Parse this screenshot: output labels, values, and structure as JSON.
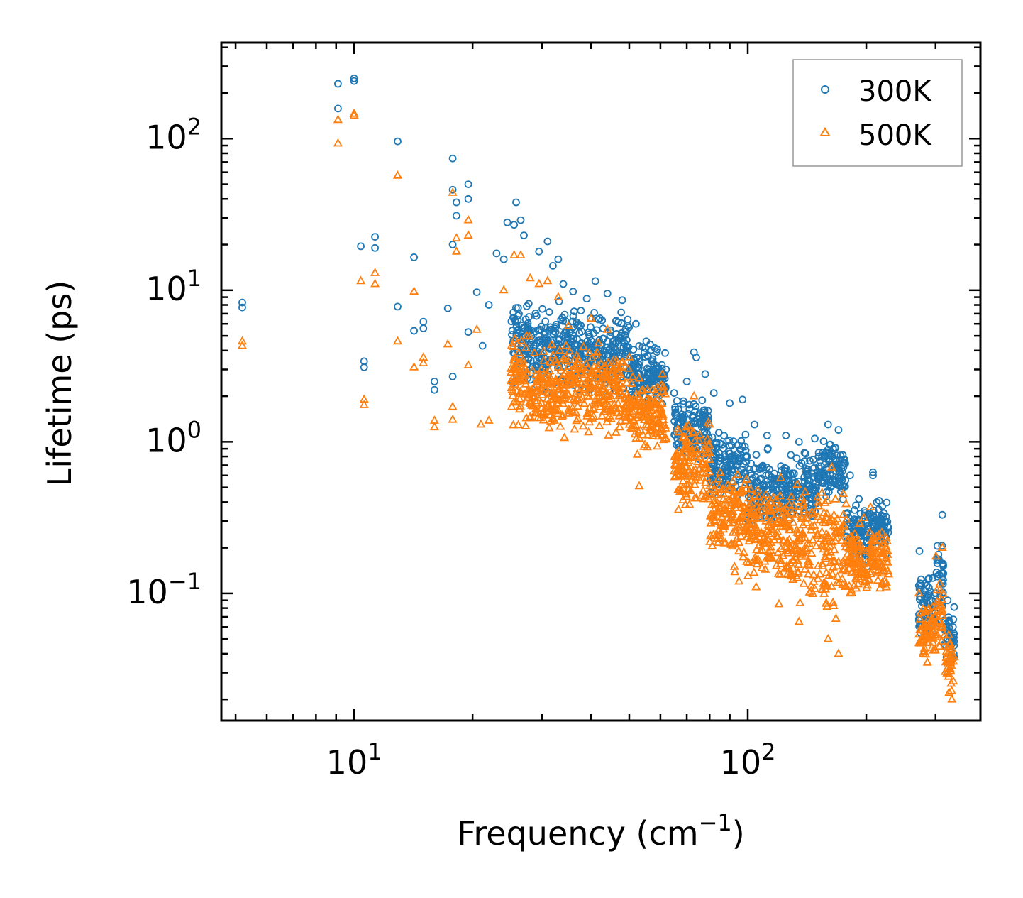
{
  "chart_data": {
    "type": "scatter",
    "title": "",
    "xlabel": "Frequency (cm",
    "xlabel_sup": "−1",
    "xlabel_suffix": ")",
    "ylabel": "Lifetime (ps)",
    "xscale": "log",
    "yscale": "log",
    "xlim": [
      4.6,
      390
    ],
    "ylim": [
      0.0145,
      430
    ],
    "x_ticks": [
      {
        "value": 10,
        "base": "10",
        "exp": "1"
      },
      {
        "value": 100,
        "base": "10",
        "exp": "2"
      }
    ],
    "y_ticks": [
      {
        "value": 0.1,
        "base": "10",
        "exp": "−1"
      },
      {
        "value": 1,
        "base": "10",
        "exp": "0"
      },
      {
        "value": 10,
        "base": "10",
        "exp": "1"
      },
      {
        "value": 100,
        "base": "10",
        "exp": "2"
      }
    ],
    "legend_position": "top-right",
    "series": [
      {
        "name": "300K",
        "marker": "circle",
        "color": "#1f77b4",
        "points": [
          [
            5.2,
            7.7
          ],
          [
            5.2,
            8.3
          ],
          [
            9.1,
            230
          ],
          [
            9.1,
            158
          ],
          [
            10,
            240
          ],
          [
            10,
            250
          ],
          [
            10.4,
            19.5
          ],
          [
            10.6,
            3.4
          ],
          [
            10.6,
            3.1
          ],
          [
            11.3,
            22.5
          ],
          [
            11.3,
            19
          ],
          [
            12.9,
            96
          ],
          [
            12.9,
            7.8
          ],
          [
            14.2,
            16.5
          ],
          [
            14.2,
            5.4
          ],
          [
            15,
            6.2
          ],
          [
            15,
            5.6
          ],
          [
            16,
            2.5
          ],
          [
            16,
            2.2
          ],
          [
            17.3,
            7.6
          ],
          [
            17.8,
            74
          ],
          [
            17.8,
            46
          ],
          [
            18.2,
            38
          ],
          [
            18.2,
            31
          ],
          [
            17.8,
            20
          ],
          [
            17.8,
            2.7
          ],
          [
            19.5,
            50
          ],
          [
            19.5,
            40
          ],
          [
            19.5,
            5.3
          ],
          [
            20.5,
            9.7
          ],
          [
            21.2,
            4.3
          ],
          [
            22,
            8
          ],
          [
            23,
            17.5
          ],
          [
            24,
            16
          ],
          [
            24.5,
            28
          ],
          [
            25.5,
            27
          ],
          [
            25.8,
            38
          ],
          [
            26.5,
            29
          ],
          [
            27,
            23
          ],
          [
            29.5,
            18
          ],
          [
            31,
            21
          ],
          [
            32,
            14.5
          ],
          [
            33,
            16
          ],
          [
            34,
            11
          ],
          [
            36,
            9.8
          ],
          [
            39,
            8.8
          ],
          [
            41,
            11.5
          ],
          [
            44,
            9.5
          ],
          [
            48,
            8.6
          ],
          [
            52,
            6
          ],
          [
            57,
            3.4
          ],
          [
            62,
            3
          ],
          [
            65,
            2.1
          ],
          [
            70,
            2.5
          ],
          [
            73,
            3.9
          ],
          [
            74,
            3.6
          ],
          [
            78,
            2.8
          ],
          [
            82,
            2.1
          ],
          [
            90,
            1.8
          ],
          [
            97,
            1.9
          ],
          [
            104,
            1.3
          ],
          [
            112,
            1.1
          ],
          [
            125,
            1.1
          ],
          [
            135,
            1.0
          ],
          [
            148,
            1.05
          ],
          [
            160,
            1.3
          ],
          [
            170,
            1.2
          ],
          [
            182,
            0.6
          ],
          [
            208,
            0.63
          ],
          [
            208,
            0.6
          ],
          [
            222,
            0.25
          ],
          [
            273,
            0.19
          ],
          [
            312,
            0.33
          ],
          [
            322,
            0.09
          ],
          [
            332,
            0.06
          ]
        ],
        "bands": [
          {
            "x": [
              25,
              29
            ],
            "y_min": 2.0,
            "y_max": 10
          },
          {
            "x": [
              29,
              38
            ],
            "y_min": 1.8,
            "y_max": 10
          },
          {
            "x": [
              38,
              50
            ],
            "y_min": 1.8,
            "y_max": 8.5
          },
          {
            "x": [
              50,
              62
            ],
            "y_min": 1.5,
            "y_max": 5
          },
          {
            "x": [
              65,
              80
            ],
            "y_min": 0.6,
            "y_max": 2.2
          },
          {
            "x": [
              80,
              100
            ],
            "y_min": 0.35,
            "y_max": 1.4
          },
          {
            "x": [
              100,
              125
            ],
            "y_min": 0.22,
            "y_max": 1.0
          },
          {
            "x": [
              125,
              150
            ],
            "y_min": 0.25,
            "y_max": 1.0
          },
          {
            "x": [
              150,
              178
            ],
            "y_min": 0.35,
            "y_max": 1.2
          },
          {
            "x": [
              178,
              205
            ],
            "y_min": 0.13,
            "y_max": 0.5
          },
          {
            "x": [
              205,
              228
            ],
            "y_min": 0.17,
            "y_max": 0.45
          },
          {
            "x": [
              272,
              300
            ],
            "y_min": 0.04,
            "y_max": 0.18
          },
          {
            "x": [
              300,
              315
            ],
            "y_min": 0.05,
            "y_max": 0.32
          },
          {
            "x": [
              315,
              335
            ],
            "y_min": 0.03,
            "y_max": 0.09
          }
        ]
      },
      {
        "name": "500K",
        "marker": "triangle",
        "color": "#ff7f0e",
        "points": [
          [
            5.2,
            4.3
          ],
          [
            5.2,
            4.6
          ],
          [
            9.1,
            93
          ],
          [
            9.1,
            133
          ],
          [
            10,
            142
          ],
          [
            10,
            146
          ],
          [
            10.4,
            11.5
          ],
          [
            10.6,
            1.9
          ],
          [
            10.6,
            1.75
          ],
          [
            11.3,
            13
          ],
          [
            11.3,
            11
          ],
          [
            12.9,
            57
          ],
          [
            12.9,
            4.6
          ],
          [
            14.2,
            9.8
          ],
          [
            14.2,
            3.1
          ],
          [
            15,
            3.6
          ],
          [
            15,
            3.3
          ],
          [
            16,
            1.38
          ],
          [
            16,
            1.25
          ],
          [
            17.3,
            4.4
          ],
          [
            17.8,
            44
          ],
          [
            18.2,
            22
          ],
          [
            18.2,
            18
          ],
          [
            17.8,
            1.7
          ],
          [
            17.8,
            1.4
          ],
          [
            19.5,
            29
          ],
          [
            19.5,
            23
          ],
          [
            19.5,
            3.2
          ],
          [
            20.5,
            5.5
          ],
          [
            21,
            1.3
          ],
          [
            22,
            1.38
          ],
          [
            24,
            10
          ],
          [
            25.5,
            17
          ],
          [
            26.5,
            17
          ],
          [
            28,
            12
          ],
          [
            29.5,
            11
          ],
          [
            31,
            11.5
          ],
          [
            33,
            9
          ],
          [
            35,
            5.8
          ],
          [
            40,
            6.5
          ],
          [
            44,
            5.5
          ],
          [
            53,
            0.51
          ],
          [
            60,
            1.5
          ],
          [
            70,
            1.0
          ],
          [
            73,
            2.0
          ],
          [
            80,
            1.3
          ],
          [
            85,
            0.36
          ],
          [
            95,
            0.12
          ],
          [
            105,
            0.11
          ],
          [
            120,
            0.085
          ],
          [
            135,
            0.065
          ],
          [
            160,
            0.05
          ],
          [
            170,
            0.04
          ],
          [
            182,
            0.1
          ],
          [
            205,
            0.37
          ],
          [
            225,
            0.11
          ],
          [
            272,
            0.1
          ],
          [
            300,
            0.07
          ],
          [
            312,
            0.2
          ],
          [
            322,
            0.04
          ],
          [
            330,
            0.02
          ]
        ],
        "bands": [
          {
            "x": [
              25,
              29
            ],
            "y_min": 1.0,
            "y_max": 6
          },
          {
            "x": [
              29,
              38
            ],
            "y_min": 0.95,
            "y_max": 5.5
          },
          {
            "x": [
              38,
              50
            ],
            "y_min": 0.9,
            "y_max": 5
          },
          {
            "x": [
              50,
              62
            ],
            "y_min": 0.7,
            "y_max": 3.2
          },
          {
            "x": [
              65,
              80
            ],
            "y_min": 0.3,
            "y_max": 1.6
          },
          {
            "x": [
              80,
              100
            ],
            "y_min": 0.12,
            "y_max": 0.9
          },
          {
            "x": [
              100,
              125
            ],
            "y_min": 0.09,
            "y_max": 0.7
          },
          {
            "x": [
              125,
              150
            ],
            "y_min": 0.07,
            "y_max": 0.65
          },
          {
            "x": [
              150,
              178
            ],
            "y_min": 0.045,
            "y_max": 0.85
          },
          {
            "x": [
              178,
              205
            ],
            "y_min": 0.07,
            "y_max": 0.35
          },
          {
            "x": [
              205,
              228
            ],
            "y_min": 0.1,
            "y_max": 0.3
          },
          {
            "x": [
              272,
              300
            ],
            "y_min": 0.03,
            "y_max": 0.1
          },
          {
            "x": [
              300,
              315
            ],
            "y_min": 0.03,
            "y_max": 0.2
          },
          {
            "x": [
              315,
              335
            ],
            "y_min": 0.02,
            "y_max": 0.06
          }
        ]
      }
    ]
  }
}
